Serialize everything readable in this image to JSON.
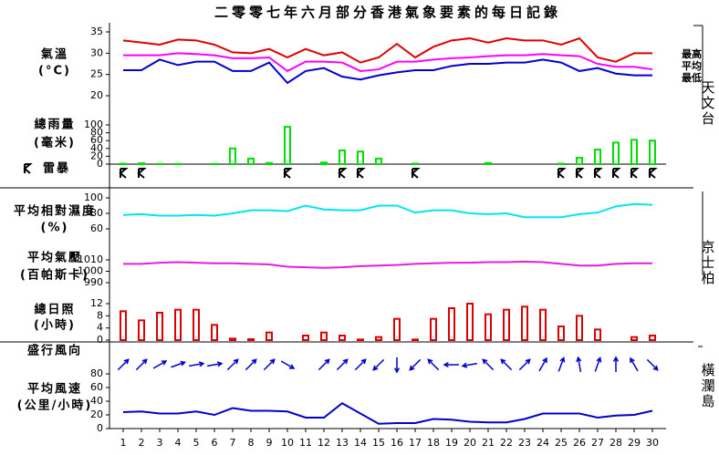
{
  "title": "二零零七年六月部分香港氣象要素的每日記錄",
  "x": [
    1,
    2,
    3,
    4,
    5,
    6,
    7,
    8,
    9,
    10,
    11,
    12,
    13,
    14,
    15,
    16,
    17,
    18,
    19,
    20,
    21,
    22,
    23,
    24,
    25,
    26,
    27,
    28,
    29,
    30
  ],
  "stations": [
    "天文台",
    "京士柏",
    "橫瀾島"
  ],
  "chart_data": [
    {
      "type": "line",
      "ylabel": "氣溫",
      "yunit": "(°C)",
      "ylim": [
        20,
        35
      ],
      "yticks": [
        20,
        25,
        30,
        35
      ],
      "series": [
        {
          "name": "最高",
          "color": "#dd0000",
          "values": [
            33,
            32.5,
            32,
            33.2,
            33,
            32,
            30.2,
            30,
            31,
            29,
            31,
            29.5,
            30.2,
            27.8,
            29,
            32.2,
            29,
            31.5,
            33,
            33.5,
            32.5,
            33.5,
            33,
            33,
            32,
            33.5,
            29,
            28,
            30,
            30
          ]
        },
        {
          "name": "平均",
          "color": "#ff00ff",
          "values": [
            29.5,
            29.5,
            29.5,
            30,
            29.8,
            29.5,
            28.8,
            28.8,
            29,
            25.8,
            28,
            28,
            27.8,
            25.8,
            26.2,
            28,
            28,
            28.5,
            28.8,
            29,
            29.3,
            29.5,
            29.5,
            29.8,
            29.5,
            29.3,
            27.5,
            26.8,
            26.8,
            26.2
          ]
        },
        {
          "name": "最低",
          "color": "#0000cc",
          "values": [
            26,
            26,
            28.5,
            27.2,
            28,
            28,
            25.8,
            25.8,
            27.8,
            23,
            25.8,
            26.5,
            24.5,
            23.8,
            24.8,
            25.5,
            26,
            26,
            27,
            27.5,
            27.5,
            27.8,
            27.8,
            28.5,
            27.8,
            25.8,
            26.5,
            25.2,
            24.8,
            24.8
          ]
        }
      ]
    },
    {
      "type": "bar",
      "ylabel": "總雨量",
      "yunit": "(毫米)",
      "ylim": [
        0,
        100
      ],
      "yticks": [
        0,
        20,
        40,
        60,
        80,
        100
      ],
      "color": "#00dd00",
      "values": [
        1,
        2,
        0.5,
        0.5,
        0,
        0.5,
        40,
        14,
        3,
        95,
        0,
        4,
        35,
        32,
        14,
        0,
        1,
        0,
        0,
        0,
        3,
        0,
        0,
        0,
        1,
        16,
        37,
        55,
        62,
        60
      ]
    },
    {
      "type": "event",
      "ylabel": "雷暴",
      "color": "#000000",
      "days": [
        1,
        2,
        10,
        13,
        14,
        17,
        25,
        26,
        27,
        28,
        29,
        30
      ]
    },
    {
      "type": "line",
      "ylabel": "平均相對濕度",
      "yunit": "(%)",
      "ylim": [
        60,
        100
      ],
      "yticks": [
        60,
        80,
        100
      ],
      "series": [
        {
          "color": "#00e5ee",
          "values": [
            78,
            79,
            77,
            77,
            78,
            77,
            80,
            84,
            84,
            83,
            90,
            85,
            84,
            84,
            90,
            90,
            81,
            84,
            84,
            80,
            79,
            80,
            75,
            75,
            75,
            79,
            81,
            89,
            92,
            91
          ]
        }
      ]
    },
    {
      "type": "line",
      "ylabel": "平均氣壓",
      "yunit": "(百帕斯卡)",
      "ylim": [
        990,
        1010
      ],
      "yticks": [
        990,
        1000,
        1010
      ],
      "series": [
        {
          "color": "#e020e0",
          "values": [
            1006.5,
            1006.5,
            1007.5,
            1008,
            1007.5,
            1007,
            1007,
            1006.5,
            1006,
            1004,
            1003.5,
            1003,
            1003.5,
            1004.5,
            1005,
            1005.5,
            1006.5,
            1007,
            1007.5,
            1007.5,
            1008,
            1008,
            1008.5,
            1008,
            1006.5,
            1005,
            1005,
            1006.5,
            1007,
            1007
          ]
        }
      ]
    },
    {
      "type": "bar",
      "ylabel": "總日照",
      "yunit": "(小時)",
      "ylim": [
        0,
        12
      ],
      "yticks": [
        0,
        4,
        8,
        12
      ],
      "color": "#dd0000",
      "values": [
        9.5,
        6.5,
        9,
        10,
        10,
        5,
        0.5,
        0.3,
        2.5,
        0,
        1.5,
        2.5,
        1.5,
        0.2,
        1,
        7,
        0.2,
        7,
        10.5,
        12,
        8.5,
        10,
        11,
        10,
        4.5,
        8,
        3.5,
        0,
        1,
        1.5
      ]
    },
    {
      "type": "arrow",
      "ylabel": "盛行風向",
      "color": "#0000cc",
      "values": [
        225,
        225,
        240,
        250,
        260,
        260,
        225,
        225,
        225,
        300,
        null,
        225,
        225,
        225,
        45,
        0,
        45,
        135,
        90,
        80,
        135,
        135,
        225,
        210,
        200,
        170,
        200,
        180,
        150,
        315
      ]
    },
    {
      "type": "line",
      "ylabel": "平均風速",
      "yunit": "(公里/小時)",
      "ylim": [
        0,
        80
      ],
      "yticks": [
        0,
        20,
        40,
        60,
        80
      ],
      "series": [
        {
          "color": "#0000cc",
          "values": [
            24,
            25,
            22,
            22,
            25,
            20,
            30,
            26,
            26,
            25,
            16,
            16,
            37,
            22,
            7,
            8,
            8,
            14,
            13,
            10,
            9,
            9,
            14,
            22,
            22,
            22,
            16,
            19,
            20,
            26
          ]
        }
      ]
    }
  ]
}
